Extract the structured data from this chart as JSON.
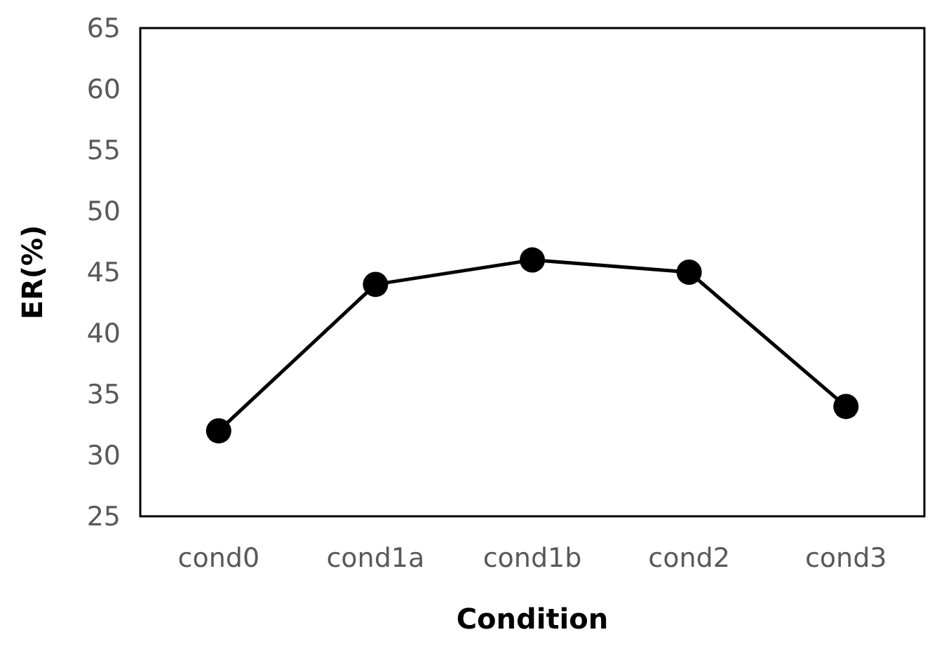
{
  "chart_data": {
    "type": "line",
    "xlabel": "Condition",
    "ylabel": "ER(%)",
    "categories": [
      "cond0",
      "cond1a",
      "cond1b",
      "cond2",
      "cond3"
    ],
    "series": [
      {
        "color": "#000000",
        "values": [
          32,
          44,
          46,
          45,
          34
        ]
      }
    ],
    "ylim": [
      25,
      65
    ],
    "yticks": [
      25,
      30,
      35,
      40,
      45,
      50,
      55,
      60,
      65
    ],
    "grid": false,
    "marker": "circle",
    "line_style": "solid"
  }
}
